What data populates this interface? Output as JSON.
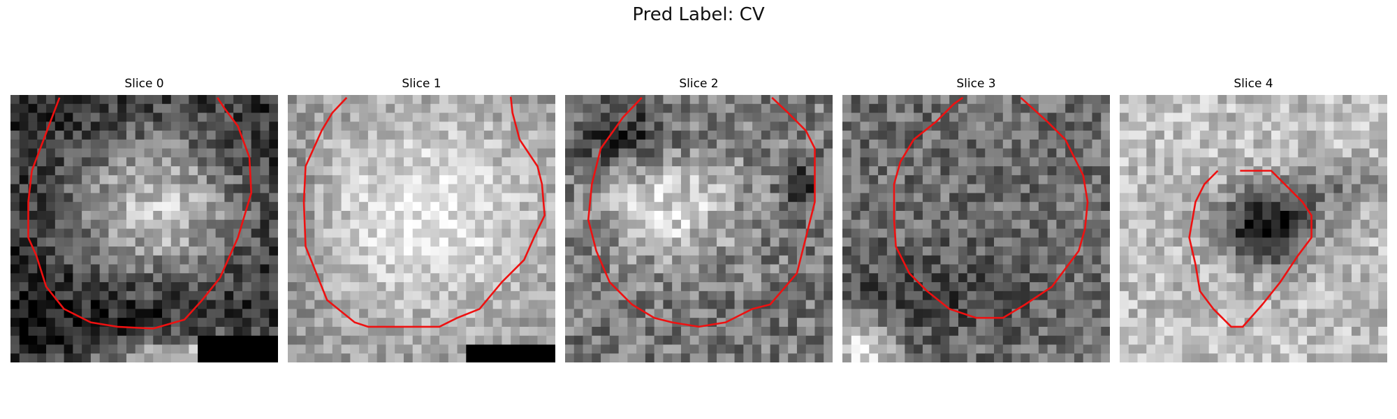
{
  "figure": {
    "suptitle": "Pred Label: CV"
  },
  "colors": {
    "contour": "#ee1111"
  },
  "panels": [
    {
      "title": "Slice 0",
      "base": 48,
      "bright_x": 0.55,
      "bright_y": 0.42,
      "bright_rx": 0.32,
      "bright_ry": 0.28,
      "bright_gain": 150,
      "dark_x": 0.25,
      "dark_y": 0.85,
      "dark_rx": 0.5,
      "dark_ry": 0.15,
      "dark_gain": -30,
      "light_x": 0.7,
      "light_y": 0.98,
      "light_rx": 0.4,
      "light_ry": 0.08,
      "light_gain": 150,
      "noise": 50,
      "black_block": [
        21,
        27,
        30,
        30
      ],
      "contour": [
        [
          2.4,
          8.5
        ],
        [
          2.0,
          12.0
        ],
        [
          2.0,
          16.0
        ],
        [
          2.9,
          18.0
        ],
        [
          4.0,
          21.5
        ],
        [
          6.0,
          24.0
        ],
        [
          9.0,
          25.5
        ],
        [
          12.0,
          26.0
        ],
        [
          16.0,
          26.2
        ],
        [
          19.5,
          25.2
        ],
        [
          21.5,
          23.0
        ],
        [
          23.5,
          20.5
        ],
        [
          25.5,
          16.0
        ],
        [
          27.0,
          11.0
        ],
        [
          26.8,
          7.0
        ],
        [
          25.5,
          3.5
        ],
        [
          24.0,
          1.5
        ],
        [
          23.2,
          0.3
        ]
      ],
      "contour_gap_from": [
        5.5,
        0.3
      ]
    },
    {
      "title": "Slice 1",
      "base": 150,
      "bright_x": 0.52,
      "bright_y": 0.45,
      "bright_rx": 0.45,
      "bright_ry": 0.4,
      "bright_gain": 80,
      "dark_x": 0.05,
      "dark_y": 0.5,
      "dark_rx": 0.1,
      "dark_ry": 0.5,
      "dark_gain": -20,
      "light_x": 0.5,
      "light_y": 0.5,
      "light_rx": 0.0,
      "light_ry": 0.0,
      "light_gain": 0,
      "noise": 40,
      "black_block": [
        20,
        28,
        30,
        30
      ],
      "contour": [
        [
          6.6,
          0.3
        ],
        [
          5.0,
          2.0
        ],
        [
          3.8,
          4.0
        ],
        [
          2.0,
          8.0
        ],
        [
          1.8,
          12.0
        ],
        [
          2.0,
          17.0
        ],
        [
          3.2,
          20.0
        ],
        [
          4.4,
          23.0
        ],
        [
          7.5,
          25.5
        ],
        [
          9.0,
          26.0
        ],
        [
          13.0,
          26.0
        ],
        [
          17.0,
          26.0
        ],
        [
          19.0,
          25.0
        ],
        [
          21.5,
          24.0
        ],
        [
          24.0,
          21.0
        ],
        [
          26.5,
          18.5
        ],
        [
          27.6,
          16.0
        ],
        [
          28.8,
          13.5
        ],
        [
          28.5,
          10.0
        ],
        [
          28.0,
          8.0
        ],
        [
          27.0,
          6.5
        ],
        [
          26.0,
          5.0
        ],
        [
          25.2,
          2.0
        ],
        [
          25.0,
          0.2
        ]
      ]
    },
    {
      "title": "Slice 2",
      "base": 120,
      "bright_x": 0.4,
      "bright_y": 0.42,
      "bright_rx": 0.25,
      "bright_ry": 0.2,
      "bright_gain": 100,
      "dark_x": 0.22,
      "dark_y": 0.15,
      "dark_rx": 0.18,
      "dark_ry": 0.12,
      "dark_gain": -80,
      "light_x": 0.88,
      "light_y": 0.35,
      "light_rx": 0.06,
      "light_ry": 0.1,
      "light_gain": -80,
      "noise": 55,
      "black_block": null,
      "contour": [
        [
          8.6,
          0.3
        ],
        [
          6.5,
          2.5
        ],
        [
          4.0,
          6.0
        ],
        [
          3.0,
          10.0
        ],
        [
          2.6,
          14.0
        ],
        [
          3.5,
          17.5
        ],
        [
          5.0,
          21.0
        ],
        [
          7.5,
          23.5
        ],
        [
          10.0,
          25.0
        ],
        [
          12.0,
          25.5
        ],
        [
          15.0,
          26.0
        ],
        [
          18.0,
          25.5
        ],
        [
          21.0,
          24.0
        ],
        [
          23.0,
          23.5
        ],
        [
          26.0,
          20.0
        ],
        [
          27.0,
          16.0
        ],
        [
          28.0,
          12.0
        ],
        [
          28.0,
          6.0
        ],
        [
          27.0,
          4.0
        ],
        [
          25.0,
          2.0
        ],
        [
          23.2,
          0.3
        ]
      ]
    },
    {
      "title": "Slice 3",
      "base": 110,
      "bright_x": 0.5,
      "bright_y": 0.5,
      "bright_rx": 0.0,
      "bright_ry": 0.0,
      "bright_gain": 0,
      "dark_x": 0.3,
      "dark_y": 0.75,
      "dark_rx": 0.35,
      "dark_ry": 0.15,
      "dark_gain": -50,
      "light_x": 0.08,
      "light_y": 0.95,
      "light_rx": 0.12,
      "light_ry": 0.12,
      "light_gain": 120,
      "noise": 50,
      "black_block": null,
      "contour": [
        [
          13.5,
          0.3
        ],
        [
          12.5,
          1.0
        ],
        [
          10.5,
          3.0
        ],
        [
          8.0,
          5.0
        ],
        [
          6.5,
          7.5
        ],
        [
          5.8,
          10.0
        ],
        [
          5.8,
          14.0
        ],
        [
          6.0,
          17.0
        ],
        [
          7.5,
          20.0
        ],
        [
          9.5,
          22.0
        ],
        [
          12.0,
          24.0
        ],
        [
          15.0,
          25.0
        ],
        [
          18.0,
          25.0
        ],
        [
          20.5,
          23.5
        ],
        [
          23.5,
          21.5
        ],
        [
          26.5,
          17.5
        ],
        [
          27.2,
          15.0
        ],
        [
          27.5,
          12.0
        ],
        [
          27.0,
          9.0
        ],
        [
          26.0,
          7.0
        ],
        [
          25.0,
          5.0
        ],
        [
          23.0,
          3.0
        ],
        [
          20.0,
          0.3
        ]
      ]
    },
    {
      "title": "Slice 4",
      "base": 190,
      "bright_x": 0.5,
      "bright_y": 0.5,
      "bright_rx": 0.0,
      "bright_ry": 0.0,
      "bright_gain": 0,
      "dark_x": 0.55,
      "dark_y": 0.5,
      "dark_rx": 0.18,
      "dark_ry": 0.14,
      "dark_gain": -180,
      "light_x": 0.8,
      "light_y": 0.35,
      "light_rx": 0.25,
      "light_ry": 0.08,
      "light_gain": -60,
      "noise": 45,
      "black_block": null,
      "contour": [
        [
          11.0,
          8.5
        ],
        [
          9.5,
          10.0
        ],
        [
          8.5,
          12.0
        ],
        [
          7.8,
          16.0
        ],
        [
          8.5,
          19.0
        ],
        [
          9.0,
          22.0
        ],
        [
          10.5,
          24.0
        ],
        [
          12.5,
          26.0
        ],
        [
          13.8,
          26.0
        ],
        [
          16.0,
          23.5
        ],
        [
          18.0,
          21.0
        ],
        [
          20.0,
          18.0
        ],
        [
          21.5,
          16.0
        ],
        [
          21.5,
          13.5
        ],
        [
          20.5,
          12.0
        ],
        [
          19.0,
          10.5
        ],
        [
          17.0,
          8.5
        ],
        [
          15.0,
          8.5
        ],
        [
          13.5,
          8.5
        ]
      ]
    }
  ]
}
